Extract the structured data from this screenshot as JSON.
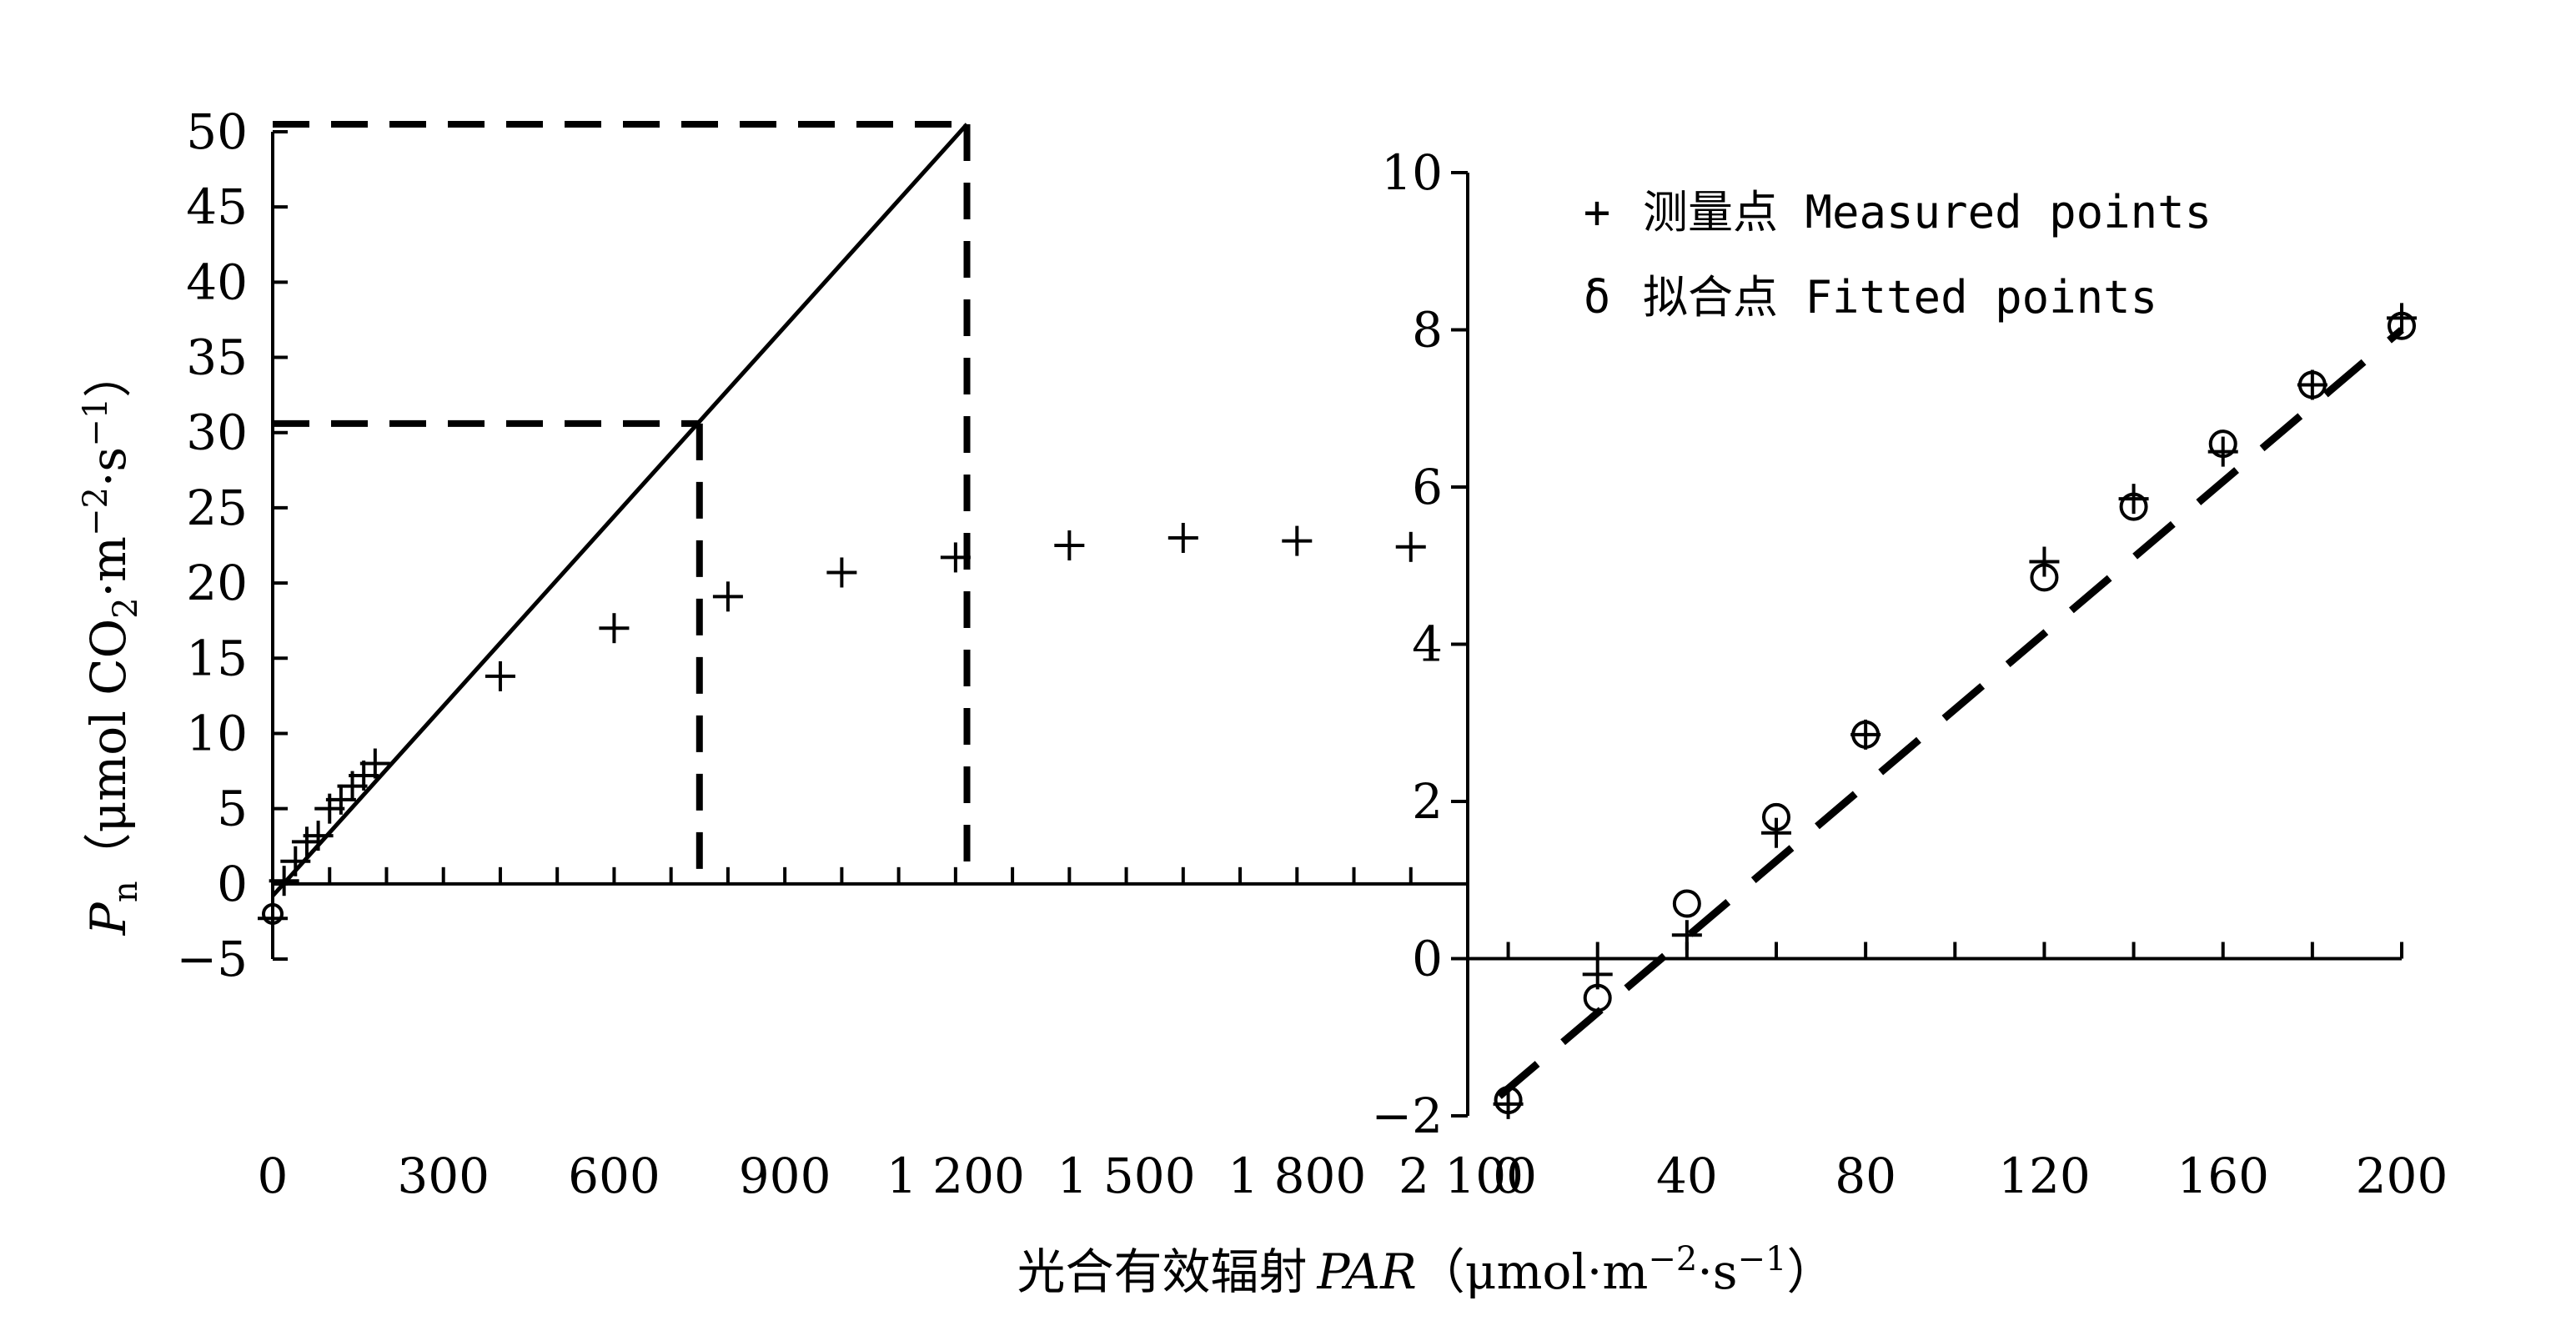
{
  "chart_data": [
    {
      "type": "scatter",
      "panel": "left",
      "ylabel_symbol": "P",
      "ylabel_subscript": "n",
      "ylabel_unit": "（μmol CO",
      "ylabel_unit_sub": "2",
      "ylabel_unit_rest": "·m",
      "ylabel_unit_sup1": "−2",
      "ylabel_unit_rest2": "·s",
      "ylabel_unit_sup2": "−1",
      "ylabel_unit_close": "）",
      "xlim": [
        0,
        2100
      ],
      "ylim": [
        -5,
        50
      ],
      "x_ticks": [
        0,
        300,
        600,
        900,
        1200,
        1500,
        1800,
        2100
      ],
      "x_tick_labels": [
        "0",
        "300",
        "600",
        "900",
        "1 200",
        "1 500",
        "1 800",
        "2 100"
      ],
      "y_ticks": [
        -5,
        0,
        5,
        10,
        15,
        20,
        25,
        30,
        35,
        40,
        45,
        50
      ],
      "y_tick_labels": [
        "−5",
        "0",
        "5",
        "10",
        "15",
        "20",
        "25",
        "30",
        "35",
        "40",
        "45",
        "50"
      ],
      "series": [
        {
          "marker": "+",
          "points": [
            [
              0,
              -2.3
            ],
            [
              20,
              0.2
            ],
            [
              40,
              1.5
            ],
            [
              60,
              2.8
            ],
            [
              80,
              3.2
            ],
            [
              100,
              5.0
            ],
            [
              120,
              5.6
            ],
            [
              140,
              6.5
            ],
            [
              160,
              7.2
            ],
            [
              180,
              8.0
            ],
            [
              400,
              13.8
            ],
            [
              600,
              17.0
            ],
            [
              800,
              19.1
            ],
            [
              1000,
              20.7
            ],
            [
              1200,
              21.7
            ],
            [
              1400,
              22.5
            ],
            [
              1600,
              23.0
            ],
            [
              1800,
              22.8
            ],
            [
              2000,
              22.4
            ]
          ]
        },
        {
          "marker": "o",
          "points": [
            [
              0,
              -2.0
            ]
          ]
        }
      ],
      "lines": [
        {
          "style": "solid",
          "points": [
            [
              0,
              -0.8
            ],
            [
              1220,
              50.5
            ]
          ]
        },
        {
          "style": "dashed",
          "points": [
            [
              0,
              50.5
            ],
            [
              1220,
              50.5
            ]
          ]
        },
        {
          "style": "dashed",
          "points": [
            [
              1220,
              50.5
            ],
            [
              1220,
              0
            ]
          ]
        },
        {
          "style": "dashed",
          "points": [
            [
              0,
              30.6
            ],
            [
              750,
              30.6
            ]
          ]
        },
        {
          "style": "dashed",
          "points": [
            [
              750,
              30.6
            ],
            [
              750,
              0
            ]
          ]
        }
      ]
    },
    {
      "type": "scatter",
      "panel": "right",
      "xlim": [
        -10,
        200
      ],
      "ylim": [
        -2,
        10
      ],
      "x_ticks": [
        0,
        20,
        40,
        60,
        80,
        100,
        120,
        140,
        160,
        180,
        200
      ],
      "x_tick_labels_shown": [
        "0",
        "40",
        "80",
        "120",
        "160",
        "200"
      ],
      "y_ticks": [
        -2,
        0,
        2,
        4,
        6,
        8,
        10
      ],
      "y_tick_labels": [
        "−2",
        "0",
        "2",
        "4",
        "6",
        "8",
        "10"
      ],
      "legend": [
        {
          "symbol": "+",
          "label": "测量点 Measured points"
        },
        {
          "symbol": "δ",
          "label": "拟合点 Fitted points"
        }
      ],
      "series": [
        {
          "name": "测量点 Measured points",
          "marker": "+",
          "points": [
            [
              0,
              -1.85
            ],
            [
              20,
              -0.2
            ],
            [
              40,
              0.3
            ],
            [
              60,
              1.6
            ],
            [
              80,
              2.85
            ],
            [
              120,
              5.05
            ],
            [
              140,
              5.85
            ],
            [
              160,
              6.45
            ],
            [
              180,
              7.3
            ],
            [
              200,
              8.15
            ]
          ]
        },
        {
          "name": "拟合点 Fitted points",
          "marker": "o",
          "points": [
            [
              0,
              -1.8
            ],
            [
              20,
              -0.5
            ],
            [
              40,
              0.7
            ],
            [
              60,
              1.8
            ],
            [
              80,
              2.85
            ],
            [
              120,
              4.85
            ],
            [
              140,
              5.75
            ],
            [
              160,
              6.55
            ],
            [
              180,
              7.3
            ],
            [
              200,
              8.05
            ]
          ]
        }
      ],
      "lines": [
        {
          "style": "dashed",
          "points": [
            [
              -2,
              -1.75
            ],
            [
              200,
              8.0
            ]
          ]
        }
      ]
    }
  ],
  "xlabel_main": "光合有效辐射",
  "xlabel_symbol": "PAR",
  "xlabel_unit": "（μmol·m",
  "xlabel_unit_sup1": "−2",
  "xlabel_unit_rest": "·s",
  "xlabel_unit_sup2": "−1",
  "xlabel_unit_close": "）"
}
